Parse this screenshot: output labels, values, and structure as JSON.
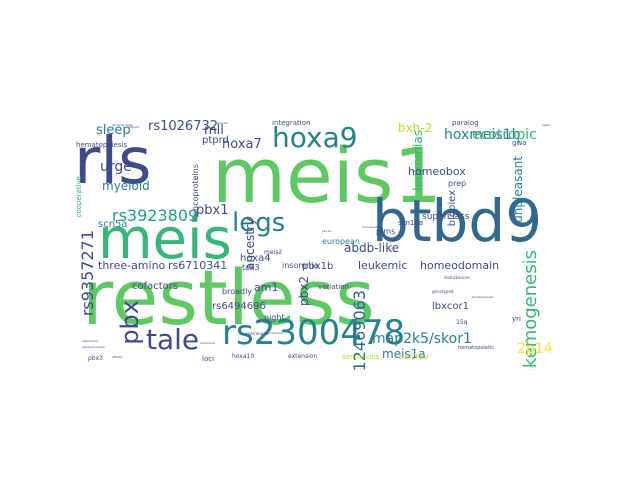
{
  "word_cloud": {
    "palette": {
      "dark_purple": "#440154",
      "indigo": "#3e4a89",
      "blue": "#31688e",
      "teal": "#26828e",
      "green_teal": "#1f9e89",
      "green": "#35b779",
      "light_green": "#6ece58",
      "yellow_green": "#b5de2b",
      "yellow": "#fde725"
    },
    "words": [
      {
        "text": "restless",
        "color": "#5ec962",
        "weight": 100
      },
      {
        "text": "meis1",
        "color": "#5ec962",
        "weight": 92
      },
      {
        "text": "rls",
        "color": "#3e4a89",
        "weight": 80
      },
      {
        "text": "btbd9",
        "color": "#31688e",
        "weight": 78
      },
      {
        "text": "meis",
        "color": "#35b779",
        "weight": 70
      },
      {
        "text": "rs2300478",
        "color": "#26828e",
        "weight": 55
      },
      {
        "text": "tale",
        "color": "#3e4a89",
        "weight": 48
      },
      {
        "text": "hoxa9",
        "color": "#26828e",
        "weight": 45
      },
      {
        "text": "legs",
        "color": "#26828e",
        "weight": 44
      },
      {
        "text": "pbx",
        "color": "#3e4a89",
        "weight": 42
      },
      {
        "text": "leukemogenesis",
        "color": "#35b779",
        "weight": 30
      },
      {
        "text": "rs12469063",
        "color": "#31688e",
        "weight": 25
      },
      {
        "text": "rs9357271",
        "color": "#3e4a89",
        "weight": 22
      },
      {
        "text": "rs3923809",
        "color": "#1f9e89",
        "weight": 20
      },
      {
        "text": "map2k5/skor1",
        "color": "#26828e",
        "weight": 18
      },
      {
        "text": "hoxmeis1b",
        "color": "#26828e",
        "weight": 18
      },
      {
        "text": "ecotropic",
        "color": "#35b779",
        "weight": 16
      },
      {
        "text": "2p14",
        "color": "#fde725",
        "weight": 16
      },
      {
        "text": "meis1a",
        "color": "#26828e",
        "weight": 15
      },
      {
        "text": "rs1026732",
        "color": "#3e4a89",
        "weight": 15
      },
      {
        "text": "sleep",
        "color": "#26828e",
        "weight": 15
      },
      {
        "text": "hoxa7",
        "color": "#3e4a89",
        "weight": 14
      },
      {
        "text": "pbx1",
        "color": "#3e4a89",
        "weight": 14
      },
      {
        "text": "pbx2",
        "color": "#3e4a89",
        "weight": 14
      },
      {
        "text": "leukemias",
        "color": "#35b779",
        "weight": 14
      },
      {
        "text": "unpleasant",
        "color": "#26828e",
        "weight": 14
      },
      {
        "text": "urge",
        "color": "#3e4a89",
        "weight": 14
      },
      {
        "text": "myeloid",
        "color": "#26828e",
        "weight": 13
      },
      {
        "text": "mll",
        "color": "#3e4a89",
        "weight": 13
      },
      {
        "text": "ancestry",
        "color": "#3e4a89",
        "weight": 13
      },
      {
        "text": "bxh-2",
        "color": "#b5de2b",
        "weight": 13
      },
      {
        "text": "abdb-like",
        "color": "#3e4a89",
        "weight": 13
      },
      {
        "text": "homeobox",
        "color": "#3e4a89",
        "weight": 12
      },
      {
        "text": "homeodomain",
        "color": "#3e4a89",
        "weight": 12
      },
      {
        "text": "leukemic",
        "color": "#3e4a89",
        "weight": 12
      },
      {
        "text": "rs6710341",
        "color": "#3e4a89",
        "weight": 12
      },
      {
        "text": "three-amino",
        "color": "#3e4a89",
        "weight": 12
      },
      {
        "text": "rs6494696",
        "color": "#3e4a89",
        "weight": 11
      },
      {
        "text": "am1",
        "color": "#3e4a89",
        "weight": 11
      },
      {
        "text": "hoxa4",
        "color": "#3e4a89",
        "weight": 11
      },
      {
        "text": "lbxcor1",
        "color": "#3e4a89",
        "weight": 11
      },
      {
        "text": "pbx1b",
        "color": "#3e4a89",
        "weight": 10
      },
      {
        "text": "superclass",
        "color": "#3e4a89",
        "weight": 10
      },
      {
        "text": "biopiex",
        "color": "#3e4a89",
        "weight": 10
      },
      {
        "text": "ptprd",
        "color": "#3e4a89",
        "weight": 10
      },
      {
        "text": "cofactors",
        "color": "#3e4a89",
        "weight": 10
      },
      {
        "text": "scn5a",
        "color": "#26828e",
        "weight": 10
      },
      {
        "text": "oncoproteins",
        "color": "#3e4a89",
        "weight": 9
      },
      {
        "text": "cooperative",
        "color": "#35b779",
        "weight": 8
      },
      {
        "text": "hematopoiesis",
        "color": "#3e4a89",
        "weight": 8
      },
      {
        "text": "integration",
        "color": "#3e4a89",
        "weight": 8
      },
      {
        "text": "paralog",
        "color": "#3e4a89",
        "weight": 8
      },
      {
        "text": "plms",
        "color": "#3e4a89",
        "weight": 8
      },
      {
        "text": "prep",
        "color": "#3e4a89",
        "weight": 8
      },
      {
        "text": "european",
        "color": "#26828e",
        "weight": 8
      },
      {
        "text": "insomnia",
        "color": "#3e4a89",
        "weight": 8
      },
      {
        "text": "broadly",
        "color": "#3e4a89",
        "weight": 8
      },
      {
        "text": "night",
        "color": "#3e4a89",
        "weight": 8
      },
      {
        "text": "tox3",
        "color": "#3e4a89",
        "weight": 8
      },
      {
        "text": "variation",
        "color": "#3e4a89",
        "weight": 8
      },
      {
        "text": "scn10a",
        "color": "#3e4a89",
        "weight": 7
      },
      {
        "text": "yri",
        "color": "#3e4a89",
        "weight": 7
      },
      {
        "text": "gwa",
        "color": "#3e4a89",
        "weight": 7
      },
      {
        "text": "sensations",
        "color": "#b5de2b",
        "weight": 7
      },
      {
        "text": "enriched",
        "color": "#b5de2b",
        "weight": 7
      },
      {
        "text": "extension",
        "color": "#3e4a89",
        "weight": 7
      },
      {
        "text": "hoxa10",
        "color": "#3e4a89",
        "weight": 7
      },
      {
        "text": "loci",
        "color": "#3e4a89",
        "weight": 7
      },
      {
        "text": "pbx3",
        "color": "#3e4a89",
        "weight": 6
      },
      {
        "text": "meis2",
        "color": "#3e4a89",
        "weight": 6
      },
      {
        "text": "hematopoietic",
        "color": "#3e4a89",
        "weight": 6
      },
      {
        "text": "15q",
        "color": "#3e4a89",
        "weight": 6
      },
      {
        "text": "libraries",
        "color": "#3e4a89",
        "weight": 5
      },
      {
        "text": "rearranged",
        "color": "#3e4a89",
        "weight": 5
      },
      {
        "text": "disturbances",
        "color": "#3e4a89",
        "weight": 5
      },
      {
        "text": "genotyped",
        "color": "#3e4a89",
        "weight": 5
      },
      {
        "text": "hematopoietic",
        "color": "#3e4a89",
        "weight": 5
      },
      {
        "text": "translocation",
        "color": "#3e4a89",
        "weight": 4
      },
      {
        "text": "pbx1a",
        "color": "#3e4a89",
        "weight": 4
      },
      {
        "text": "genome-wide",
        "color": "#3e4a89",
        "weight": 4
      },
      {
        "text": "sequences",
        "color": "#3e4a89",
        "weight": 4
      },
      {
        "text": "affinity",
        "color": "#3e4a89",
        "weight": 3
      },
      {
        "text": "embryonic",
        "color": "#3e4a89",
        "weight": 3
      },
      {
        "text": "syndrome",
        "color": "#3e4a89",
        "weight": 3
      },
      {
        "text": "disorder",
        "color": "#3e4a89",
        "weight": 3
      },
      {
        "text": "reflects",
        "color": "#3e4a89",
        "weight": 3
      },
      {
        "text": "septic",
        "color": "#3e4a89",
        "weight": 3
      },
      {
        "text": "developmental",
        "color": "#3e4a89",
        "weight": 3
      }
    ]
  }
}
